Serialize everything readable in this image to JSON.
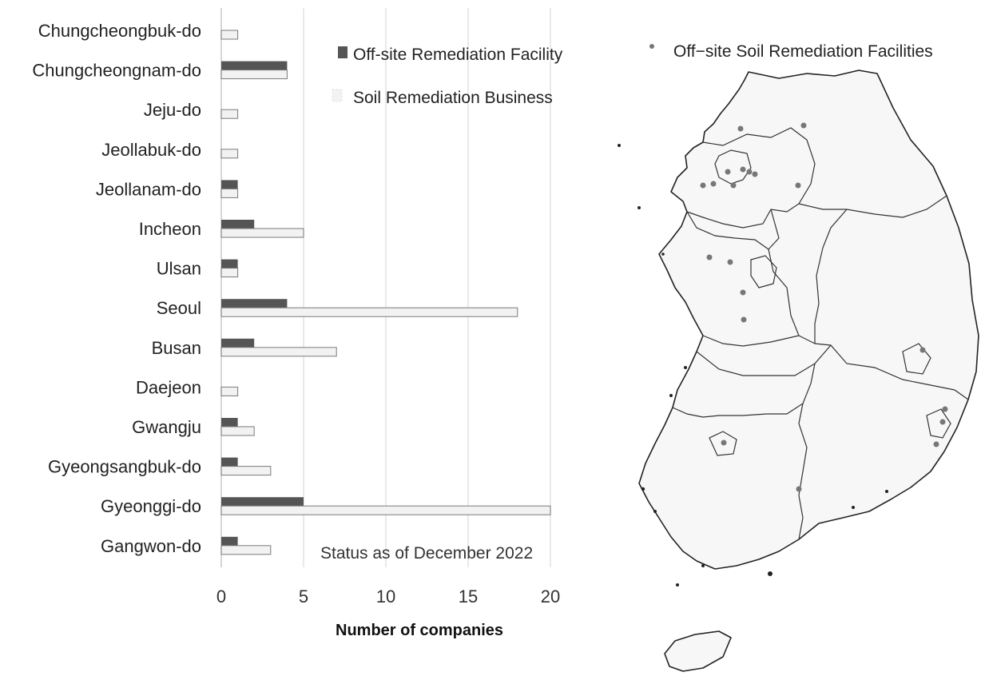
{
  "chart_data": {
    "type": "bar",
    "orientation": "horizontal",
    "categories": [
      "Chungcheongbuk-do",
      "Chungcheongnam-do",
      "Jeju-do",
      "Jeollabuk-do",
      "Jeollanam-do",
      "Incheon",
      "Ulsan",
      "Seoul",
      "Busan",
      "Daejeon",
      "Gwangju",
      "Gyeongsangbuk-do",
      "Gyeonggi-do",
      "Gangwon-do"
    ],
    "series": [
      {
        "name": "Off-site Remediation Facility",
        "color": "#555555",
        "values": [
          0,
          4,
          0,
          0,
          1,
          2,
          1,
          4,
          2,
          0,
          1,
          1,
          5,
          1
        ]
      },
      {
        "name": "Soil Remediation Business",
        "color": "#f2f2f2",
        "values": [
          1,
          4,
          1,
          1,
          1,
          5,
          1,
          18,
          7,
          1,
          2,
          3,
          20,
          3
        ]
      }
    ],
    "xticks": [
      0,
      5,
      10,
      15,
      20
    ],
    "xlim": [
      0,
      20
    ],
    "xlabel": "Number of companies",
    "ylabel": "",
    "grid": "vertical",
    "legend_position": "top-right",
    "annotation": "Status as of December 2022"
  },
  "map": {
    "legend_label": "Off−site Soil Remediation Facilities",
    "marker_color": "#777777",
    "facility_count": 20
  }
}
